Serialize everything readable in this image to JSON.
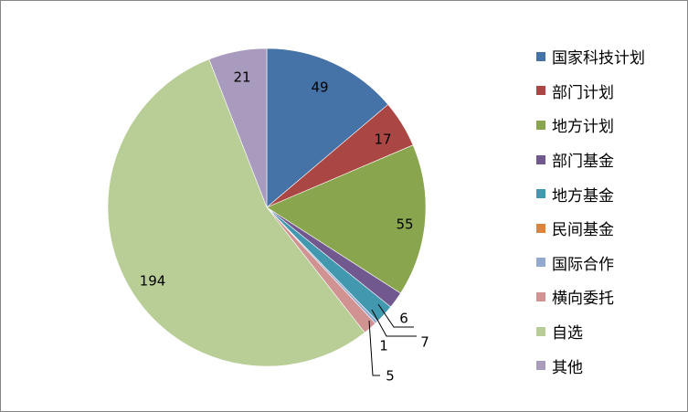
{
  "chart_data": {
    "type": "pie",
    "title": "",
    "legend_position": "right",
    "categories": [
      "国家科技计划",
      "部门计划",
      "地方计划",
      "部门基金",
      "地方基金",
      "民间基金",
      "国际合作",
      "横向委托",
      "自选",
      "其他"
    ],
    "values": [
      49,
      17,
      55,
      6,
      7,
      0,
      1,
      5,
      194,
      21
    ],
    "labels": [
      "49",
      "17",
      "55",
      "6",
      "7",
      "",
      "1",
      "5",
      "194",
      "21"
    ],
    "colors": [
      "#4572A7",
      "#AA4643",
      "#89A54E",
      "#71588F",
      "#4198AF",
      "#DB843D",
      "#93A9CF",
      "#D19392",
      "#B9CD96",
      "#A99BBD"
    ]
  }
}
